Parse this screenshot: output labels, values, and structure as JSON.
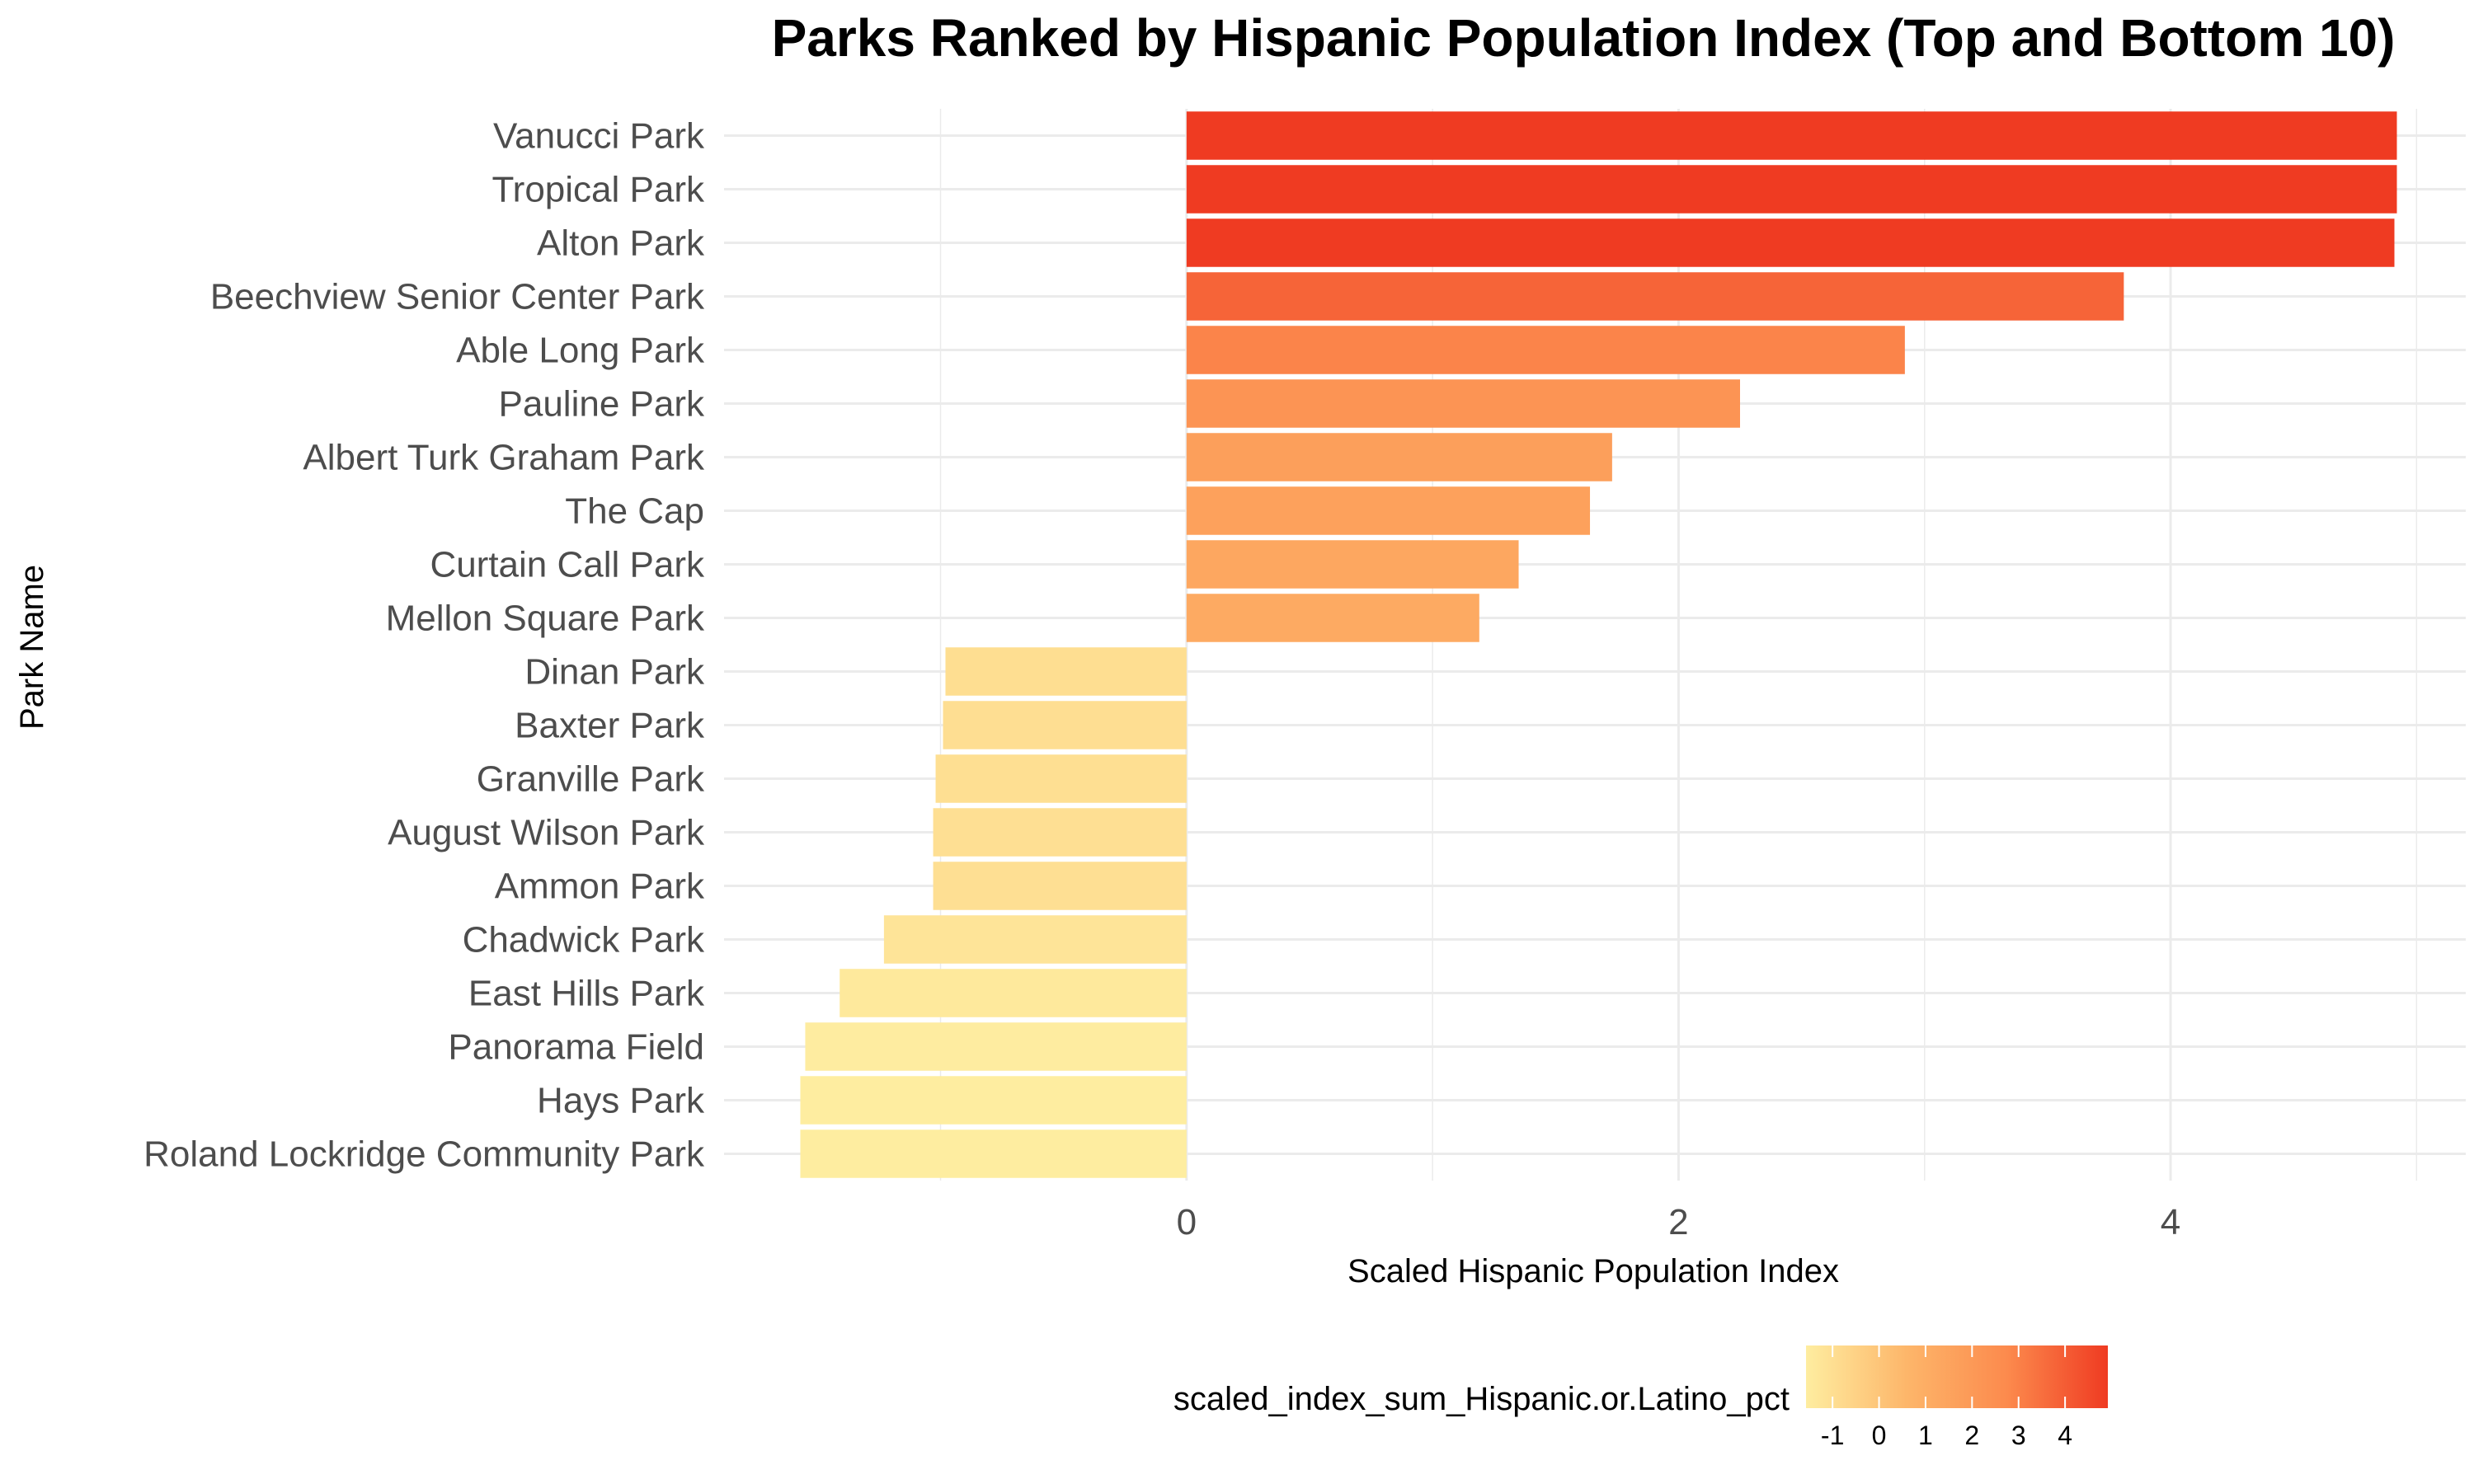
{
  "chart_data": {
    "type": "bar",
    "orientation": "horizontal",
    "title": "Parks Ranked by Hispanic Population Index (Top and Bottom 10)",
    "xlabel": "Scaled Hispanic Population Index",
    "ylabel": "Park Name",
    "categories": [
      "Vanucci Park",
      "Tropical Park",
      "Alton Park",
      "Beechview Senior Center Park",
      "Able Long Park",
      "Pauline Park",
      "Albert Turk Graham Park",
      "The Cap",
      "Curtain Call Park",
      "Mellon Square Park",
      "Dinan Park",
      "Baxter Park",
      "Granville Park",
      "August Wilson Park",
      "Ammon Park",
      "Chadwick Park",
      "East Hills Park",
      "Panorama Field",
      "Hays Park",
      "Roland Lockridge Community Park"
    ],
    "values": [
      4.92,
      4.92,
      4.91,
      3.81,
      2.92,
      2.25,
      1.73,
      1.64,
      1.35,
      1.19,
      -0.98,
      -0.99,
      -1.02,
      -1.03,
      -1.03,
      -1.23,
      -1.41,
      -1.55,
      -1.57,
      -1.57
    ],
    "xlim": [
      -1.88,
      5.2
    ],
    "xticks": [
      "0",
      "2",
      "4"
    ],
    "xtick_values": [
      0,
      2,
      4
    ],
    "grid": true,
    "legend": {
      "title": "scaled_index_sum_Hispanic.or.Latino_pct",
      "position": "bottom",
      "ticks": [
        "-1",
        "0",
        "1",
        "2",
        "3",
        "4"
      ],
      "tick_values": [
        -1,
        0,
        1,
        2,
        3,
        4
      ],
      "range": [
        -1.57,
        4.92
      ],
      "colors": [
        "#FEEDA0",
        "#FDB66A",
        "#FC8A4D",
        "#EF3B22"
      ]
    }
  }
}
